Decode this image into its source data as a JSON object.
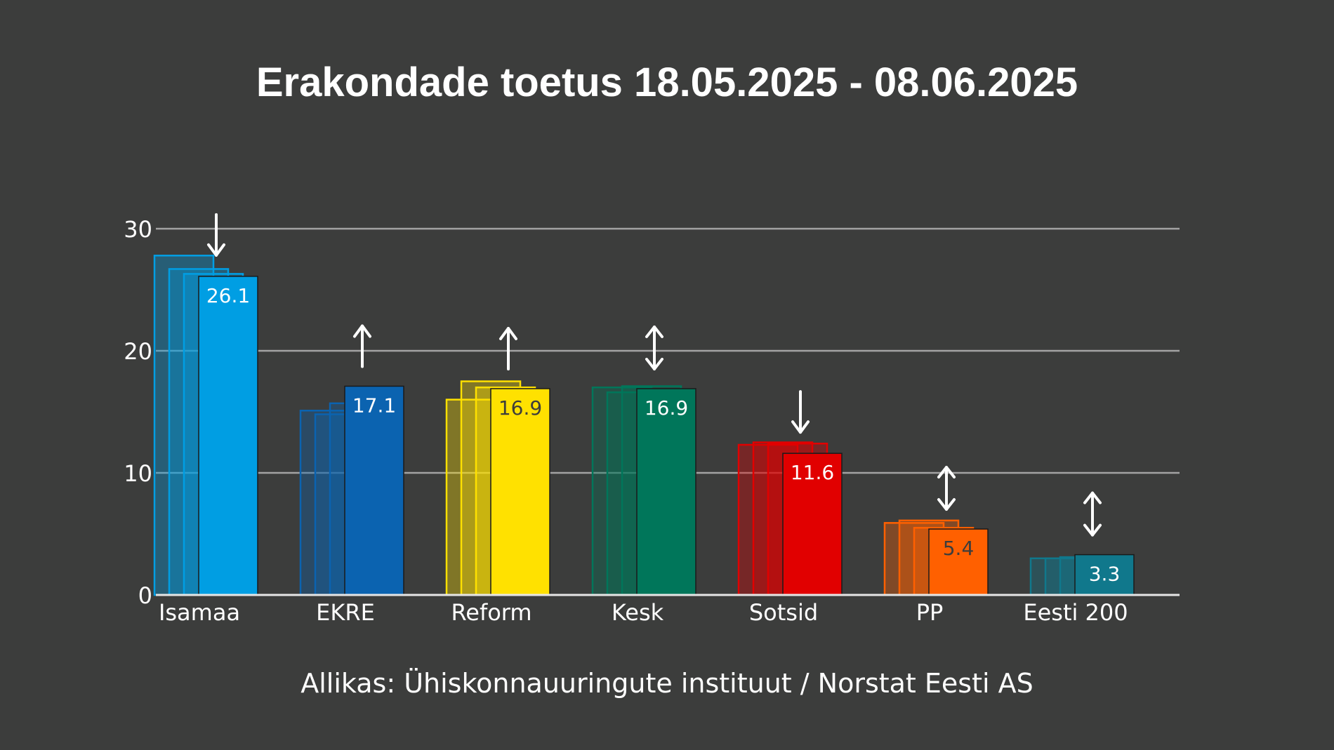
{
  "chart_data": {
    "type": "bar",
    "title": "Erakondade toetus 18.05.2025 - 08.06.2025",
    "xlabel": "",
    "ylabel": "",
    "ylim": [
      0,
      30
    ],
    "yticks": [
      0,
      10,
      20,
      30
    ],
    "grid": true,
    "categories": [
      "Isamaa",
      "EKRE",
      "Reform",
      "Kesk",
      "Sotsid",
      "PP",
      "Eesti 200"
    ],
    "values": [
      26.1,
      17.1,
      16.9,
      16.9,
      11.6,
      5.4,
      3.3
    ],
    "value_labels": [
      "26.1",
      "17.1",
      "16.9",
      "16.9",
      "11.6",
      "5.4",
      "3.3"
    ],
    "previous_values_oldest_first": [
      [
        27.8,
        26.7,
        26.3
      ],
      [
        15.1,
        14.8,
        15.7
      ],
      [
        16.0,
        17.5,
        17.0
      ],
      [
        17.0,
        16.6,
        17.1
      ],
      [
        12.3,
        12.5,
        12.4
      ],
      [
        5.9,
        6.1,
        5.5
      ],
      [
        3.0,
        3.0,
        3.1
      ]
    ],
    "trend": [
      "down",
      "up",
      "up",
      "both",
      "down",
      "both",
      "both"
    ],
    "colors": [
      "#009ee3",
      "#0b63b0",
      "#ffe100",
      "#00765a",
      "#e10000",
      "#ff6000",
      "#10788c"
    ],
    "label_colors": [
      "#ffffff",
      "#ffffff",
      "#3c3d3c",
      "#ffffff",
      "#ffffff",
      "#3c3d3c",
      "#ffffff"
    ]
  },
  "source": "Allikas: Ühiskonnauuringute instituut / Norstat Eesti AS"
}
